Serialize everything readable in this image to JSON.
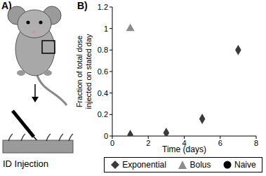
{
  "panel_a": {
    "label": "A)",
    "caption": "ID Injection"
  },
  "panel_b_label": "B)",
  "chart_data": {
    "type": "scatter",
    "xlabel": "Time (days)",
    "ylabel": [
      "Fraction of total dose",
      "injected on stated day"
    ],
    "xlim": [
      0,
      8
    ],
    "xticks": [
      0,
      2,
      4,
      6,
      8
    ],
    "ylim": [
      0,
      1.2
    ],
    "yticks": [
      0,
      0.2,
      0.4,
      0.6,
      0.8,
      1,
      1.2
    ],
    "grid": false,
    "legend": "bottom",
    "series": [
      {
        "name": "Exponential",
        "color": "#3a3a3a",
        "marker": "diamond",
        "x": [
          1,
          3,
          5,
          7
        ],
        "values": [
          0.01,
          0.03,
          0.16,
          0.8
        ]
      },
      {
        "name": "Bolus",
        "color": "#8c8c8c",
        "marker": "triangle",
        "x": [
          1
        ],
        "values": [
          1
        ]
      },
      {
        "name": "Naive",
        "color": "#000000",
        "marker": "circle",
        "x": [],
        "values": []
      }
    ]
  }
}
